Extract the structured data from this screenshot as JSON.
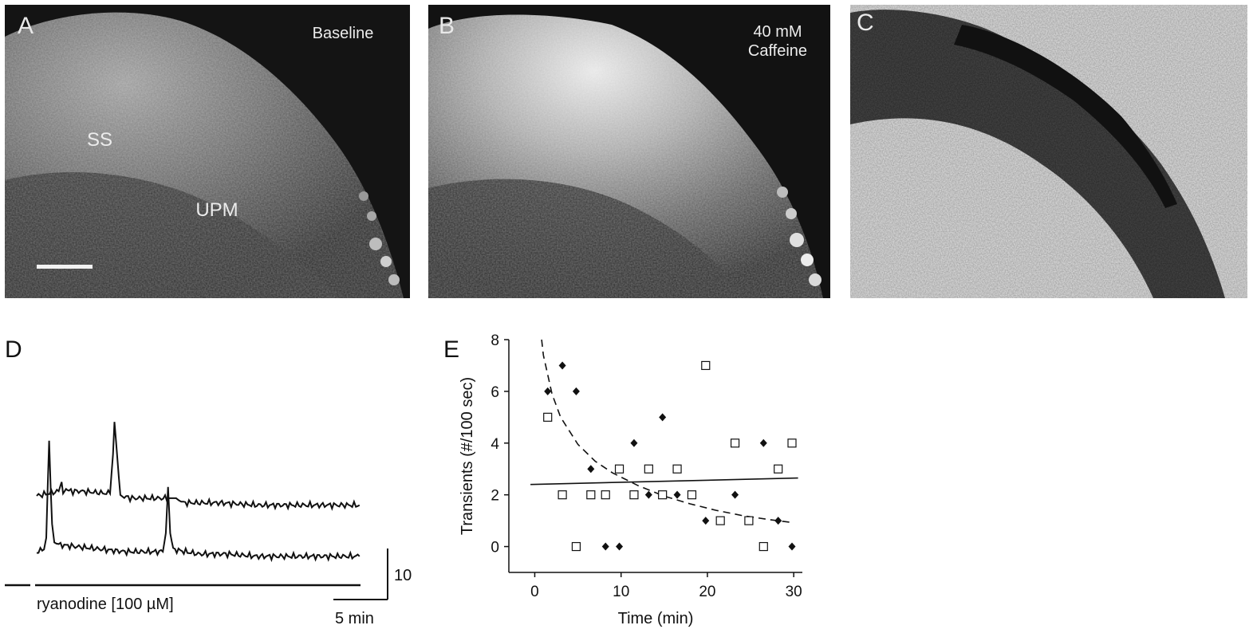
{
  "panels": {
    "a": {
      "letter": "A",
      "condition_label": "Baseline",
      "region_labels": [
        "SS",
        "UPM"
      ],
      "has_scale_bar": true
    },
    "b": {
      "letter": "B",
      "condition_label_lines": [
        "40 mM",
        "Caffeine"
      ]
    },
    "c": {
      "letter": "C"
    },
    "d": {
      "letter": "D",
      "treatment_label": "ryanodine [100 µM]",
      "scale_bar": {
        "vertical_label": "10",
        "horizontal_label": "5 min"
      }
    },
    "e": {
      "letter": "E"
    }
  },
  "chart_data": [
    {
      "panel": "D",
      "type": "line",
      "title": "",
      "xlabel": "",
      "ylabel": "",
      "series": [
        {
          "label": "upper trace",
          "x": [
            0,
            3,
            3.4,
            3.6,
            4,
            4.4,
            6,
            10,
            10.4,
            10.6,
            11,
            11.4,
            13,
            18,
            18.6,
            19,
            19.4,
            20,
            25,
            30,
            35,
            40,
            44
          ],
          "y": [
            0,
            1,
            3,
            0.5,
            1.5,
            1,
            1,
            0.5,
            9,
            16,
            8,
            0,
            -0.5,
            -0.5,
            -0.5,
            -0.5,
            -1,
            -1.5,
            -1.5,
            -2,
            -2,
            -2,
            -2
          ]
        },
        {
          "label": "lower trace",
          "x": [
            0,
            1,
            1.3,
            1.5,
            1.7,
            1.9,
            2.1,
            2.4,
            3,
            6,
            9,
            12,
            17.2,
            17.6,
            17.9,
            18.2,
            18.6,
            22,
            26,
            30,
            35,
            40,
            44
          ],
          "y": [
            0,
            0.5,
            3,
            14,
            24,
            14,
            6,
            2,
            1.5,
            1,
            0.5,
            0,
            0,
            4,
            14,
            4,
            0.5,
            -0.5,
            -0.5,
            -1,
            -1,
            -1,
            -1
          ]
        }
      ],
      "scale_bar": {
        "y_units": 10,
        "x_minutes": 5
      }
    },
    {
      "panel": "E",
      "type": "scatter",
      "xlabel": "Time (min)",
      "ylabel": "Transients (#/100 sec)",
      "xlim": [
        -3,
        31
      ],
      "ylim": [
        -1,
        8
      ],
      "xticks": [
        0,
        10,
        20,
        30
      ],
      "yticks": [
        0,
        2,
        4,
        6,
        8
      ],
      "series": [
        {
          "marker": "filled-diamond",
          "points": [
            [
              1.5,
              6
            ],
            [
              3.2,
              7
            ],
            [
              4.8,
              6
            ],
            [
              6.5,
              3
            ],
            [
              8.2,
              0
            ],
            [
              9.8,
              0
            ],
            [
              11.5,
              4
            ],
            [
              13.2,
              2
            ],
            [
              14.8,
              5
            ],
            [
              16.5,
              2
            ],
            [
              18.2,
              2
            ],
            [
              19.8,
              1
            ],
            [
              21.5,
              1
            ],
            [
              23.2,
              2
            ],
            [
              24.8,
              1
            ],
            [
              26.5,
              4
            ],
            [
              28.2,
              1
            ],
            [
              29.8,
              0
            ]
          ]
        },
        {
          "marker": "open-square",
          "points": [
            [
              1.5,
              5
            ],
            [
              3.2,
              2
            ],
            [
              4.8,
              0
            ],
            [
              6.5,
              2
            ],
            [
              8.2,
              2
            ],
            [
              9.8,
              3
            ],
            [
              11.5,
              2
            ],
            [
              13.2,
              3
            ],
            [
              14.8,
              2
            ],
            [
              16.5,
              3
            ],
            [
              18.2,
              2
            ],
            [
              19.8,
              7
            ],
            [
              21.5,
              1
            ],
            [
              23.2,
              4
            ],
            [
              24.8,
              1
            ],
            [
              26.5,
              0
            ],
            [
              28.2,
              3
            ],
            [
              29.8,
              4
            ]
          ]
        }
      ],
      "lines": [
        {
          "style": "dashed",
          "x": [
            0.8,
            1,
            2,
            3,
            5,
            7,
            9,
            12,
            15,
            18,
            21,
            24,
            27,
            30
          ],
          "y": [
            8,
            7.4,
            5.9,
            5.0,
            3.95,
            3.3,
            2.85,
            2.35,
            1.95,
            1.65,
            1.4,
            1.2,
            1.05,
            0.92
          ]
        },
        {
          "style": "solid",
          "x": [
            -0.5,
            30.5
          ],
          "y": [
            2.4,
            2.65
          ]
        }
      ]
    }
  ]
}
